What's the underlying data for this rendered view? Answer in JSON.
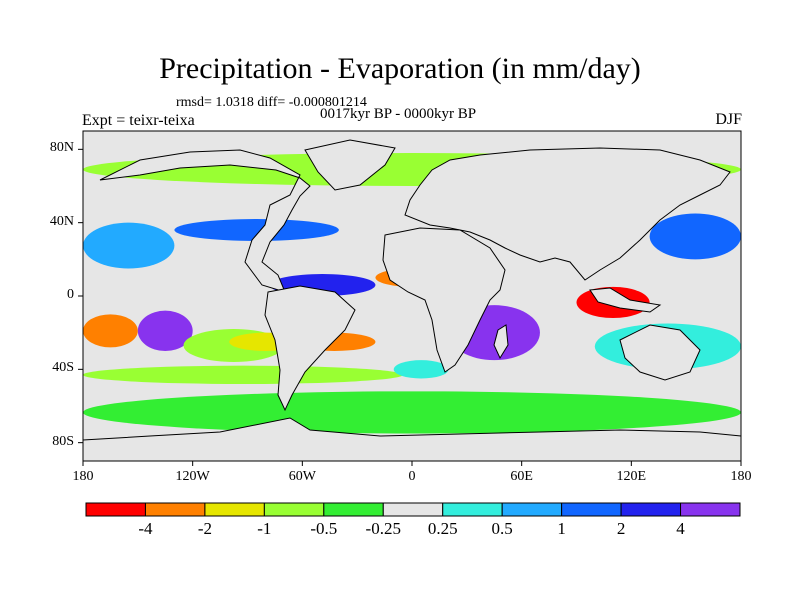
{
  "title": "Precipitation - Evaporation (in mm/day)",
  "stats_line": "rmsd= 1.0318 diff= -0.000801214",
  "subtitle": "0017kyr BP - 0000kyr BP",
  "experiment_label": "Expt = teixr-teixa",
  "season": "DJF",
  "map": {
    "projection": "cylindrical-equidistant",
    "lon_range": [
      -180,
      180
    ],
    "lat_range": [
      -90,
      90
    ],
    "land_color": "#e6e6e6",
    "background_class_color": "#e6e6e6",
    "lat_ticks": [
      {
        "value": 80,
        "label": "80N"
      },
      {
        "value": 40,
        "label": "40N"
      },
      {
        "value": 0,
        "label": "0"
      },
      {
        "value": -40,
        "label": "40S"
      },
      {
        "value": -80,
        "label": "80S"
      }
    ],
    "lon_ticks": [
      {
        "value": -180,
        "label": "180"
      },
      {
        "value": -120,
        "label": "120W"
      },
      {
        "value": -60,
        "label": "60W"
      },
      {
        "value": 0,
        "label": "0"
      },
      {
        "value": 60,
        "label": "60E"
      },
      {
        "value": 120,
        "label": "120E"
      },
      {
        "value": 180,
        "label": "180"
      }
    ]
  },
  "colorbar": {
    "colors": [
      "#ff0000",
      "#ff8000",
      "#e6e600",
      "#99ff33",
      "#33ee33",
      "#e6e6e6",
      "#33eedd",
      "#22aaff",
      "#1166ff",
      "#2222ee",
      "#8833ee"
    ],
    "labels": [
      "-4",
      "-2",
      "-1",
      "-0.5",
      "-0.25",
      "0.25",
      "0.5",
      "1",
      "2",
      "4"
    ]
  },
  "chart_data": {
    "type": "heatmap",
    "title": "Precipitation - Evaporation (in mm/day)",
    "subtitle": "0017kyr BP - 0000kyr BP",
    "levels": [
      -4,
      -2,
      -1,
      -0.5,
      -0.25,
      0.25,
      0.5,
      1,
      2,
      4
    ],
    "regions": [
      {
        "lon": [
          -180,
          180
        ],
        "lat": [
          -52,
          -75
        ],
        "class": 4
      },
      {
        "lon": [
          -180,
          -5
        ],
        "lat": [
          -38,
          -48
        ],
        "class": 3
      },
      {
        "lon": [
          -180,
          -150
        ],
        "lat": [
          -10,
          -28
        ],
        "class": 1
      },
      {
        "lon": [
          -150,
          -120
        ],
        "lat": [
          -8,
          -30
        ],
        "class": 10
      },
      {
        "lon": [
          -125,
          -70
        ],
        "lat": [
          -18,
          -36
        ],
        "class": 3
      },
      {
        "lon": [
          -100,
          -60
        ],
        "lat": [
          -20,
          -30
        ],
        "class": 2
      },
      {
        "lon": [
          -130,
          -40
        ],
        "lat": [
          42,
          30
        ],
        "class": 8
      },
      {
        "lon": [
          -78,
          -20
        ],
        "lat": [
          12,
          0
        ],
        "class": 9
      },
      {
        "lon": [
          -65,
          -20
        ],
        "lat": [
          -20,
          -30
        ],
        "class": 1
      },
      {
        "lon": [
          20,
          70
        ],
        "lat": [
          -5,
          -35
        ],
        "class": 10
      },
      {
        "lon": [
          90,
          130
        ],
        "lat": [
          5,
          -12
        ],
        "class": 0
      },
      {
        "lon": [
          130,
          180
        ],
        "lat": [
          45,
          20
        ],
        "class": 8
      },
      {
        "lon": [
          -20,
          20
        ],
        "lat": [
          15,
          5
        ],
        "class": 1
      },
      {
        "lon": [
          -180,
          180
        ],
        "lat": [
          78,
          60
        ],
        "class": 3
      },
      {
        "lon": [
          100,
          180
        ],
        "lat": [
          -15,
          -40
        ],
        "class": 6
      },
      {
        "lon": [
          -10,
          20
        ],
        "lat": [
          -35,
          -45
        ],
        "class": 6
      },
      {
        "lon": [
          -180,
          -130
        ],
        "lat": [
          40,
          15
        ],
        "class": 7
      }
    ]
  }
}
